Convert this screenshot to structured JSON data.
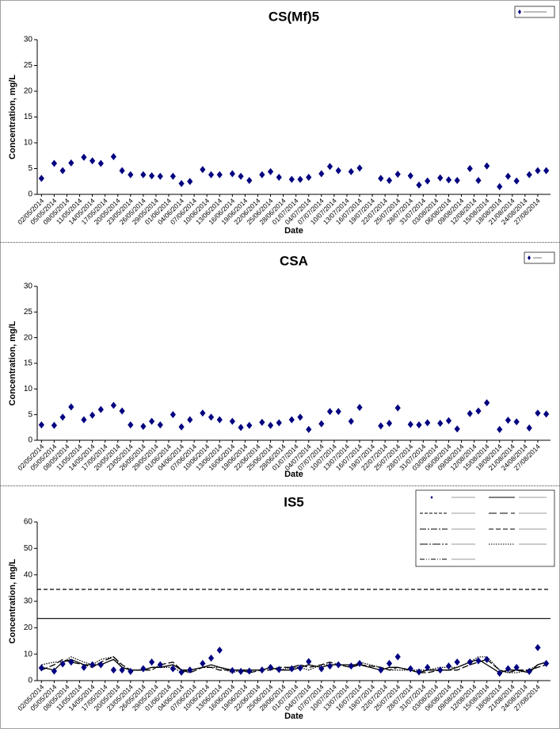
{
  "chart_data": [
    {
      "type": "scatter",
      "title": "CS(Mf)5",
      "x_label": "Date",
      "y_label": "Concentration, mg/L",
      "x": [
        "02/05/2014",
        "05/05/2014",
        "07/05/2014",
        "09/05/2014",
        "12/05/2014",
        "14/05/2014",
        "16/05/2014",
        "19/05/2014",
        "21/05/2014",
        "23/05/2014",
        "26/05/2014",
        "28/05/2014",
        "30/05/2014",
        "02/06/2014",
        "04/06/2014",
        "06/06/2014",
        "09/06/2014",
        "11/06/2014",
        "13/06/2014",
        "16/06/2014",
        "18/06/2014",
        "20/06/2014",
        "23/06/2014",
        "25/06/2014",
        "27/06/2014",
        "30/06/2014",
        "02/07/2014",
        "04/07/2014",
        "07/07/2014",
        "09/07/2014",
        "11/07/2014",
        "14/07/2014",
        "16/07/2014",
        "21/07/2014",
        "23/07/2014",
        "25/07/2014",
        "28/07/2014",
        "30/07/2014",
        "01/08/2014",
        "04/08/2014",
        "06/08/2014",
        "08/08/2014",
        "11/08/2014",
        "13/08/2014",
        "15/08/2014",
        "18/08/2014",
        "20/08/2014",
        "22/08/2014",
        "25/08/2014",
        "27/08/2014",
        "29/08/2014"
      ],
      "series": [
        {
          "color": "#000080",
          "marker": "diamond",
          "values": [
            3.1,
            6,
            4.6,
            6.1,
            7.2,
            6.5,
            6,
            7.3,
            4.6,
            3.8,
            3.8,
            3.6,
            3.5,
            3.5,
            2.1,
            2.5,
            4.8,
            3.8,
            3.8,
            4,
            3.5,
            2.7,
            3.8,
            4.4,
            3.3,
            2.9,
            2.9,
            3.3,
            4,
            5.4,
            4.6,
            4.4,
            5.1,
            3.1,
            2.7,
            3.9,
            3.6,
            1.8,
            2.6,
            3.2,
            2.8,
            2.7,
            5,
            2.7,
            5.5,
            1.5,
            3.5,
            2.6,
            3.8,
            4.6,
            4.6
          ]
        }
      ],
      "xlim": [
        "01/05/2014",
        "30/08/2014"
      ],
      "xticks": [
        "02/05/2014",
        "05/05/2014",
        "08/05/2014",
        "11/05/2014",
        "14/05/2014",
        "17/05/2014",
        "20/05/2014",
        "23/05/2014",
        "26/05/2014",
        "29/05/2014",
        "01/06/2014",
        "04/06/2014",
        "07/06/2014",
        "10/06/2014",
        "13/06/2014",
        "16/06/2014",
        "19/06/2014",
        "22/06/2014",
        "25/06/2014",
        "28/06/2014",
        "01/07/2014",
        "04/07/2014",
        "07/07/2014",
        "10/07/2014",
        "13/07/2014",
        "16/07/2014",
        "19/07/2014",
        "22/07/2014",
        "25/07/2014",
        "28/07/2014",
        "31/07/2014",
        "03/08/2014",
        "06/08/2014",
        "09/08/2014",
        "12/08/2014",
        "15/08/2014",
        "18/08/2014",
        "21/08/2014",
        "24/08/2014",
        "27/08/2014"
      ],
      "ylim": [
        0,
        30
      ],
      "yticks": [
        0,
        5,
        10,
        15,
        20,
        25,
        30
      ],
      "grid": false,
      "legend": "upper right"
    },
    {
      "type": "scatter",
      "title": "CSA",
      "x_label": "Date",
      "y_label": "Concentration, mg/L",
      "x": [
        "02/05/2014",
        "05/05/2014",
        "07/05/2014",
        "09/05/2014",
        "12/05/2014",
        "14/05/2014",
        "16/05/2014",
        "19/05/2014",
        "21/05/2014",
        "23/05/2014",
        "26/05/2014",
        "28/05/2014",
        "30/05/2014",
        "02/06/2014",
        "04/06/2014",
        "06/06/2014",
        "09/06/2014",
        "11/06/2014",
        "13/06/2014",
        "16/06/2014",
        "18/06/2014",
        "20/06/2014",
        "23/06/2014",
        "25/06/2014",
        "27/06/2014",
        "30/06/2014",
        "02/07/2014",
        "04/07/2014",
        "07/07/2014",
        "09/07/2014",
        "11/07/2014",
        "14/07/2014",
        "16/07/2014",
        "21/07/2014",
        "23/07/2014",
        "25/07/2014",
        "28/07/2014",
        "30/07/2014",
        "01/08/2014",
        "04/08/2014",
        "06/08/2014",
        "08/08/2014",
        "11/08/2014",
        "13/08/2014",
        "15/08/2014",
        "18/08/2014",
        "20/08/2014",
        "22/08/2014",
        "25/08/2014",
        "27/08/2014",
        "29/08/2014"
      ],
      "series": [
        {
          "color": "#000080",
          "marker": "diamond",
          "values": [
            3,
            2.9,
            4.5,
            6.5,
            4,
            4.9,
            6,
            6.8,
            5.7,
            3,
            2.7,
            3.7,
            3,
            5,
            2.6,
            4,
            5.3,
            4.5,
            4,
            3.7,
            2.5,
            2.9,
            3.5,
            2.9,
            3.4,
            4,
            4.5,
            2.1,
            3.2,
            5.6,
            5.6,
            3.7,
            6.4,
            2.8,
            3.3,
            6.3,
            3.1,
            3,
            3.4,
            3.3,
            3.8,
            2.2,
            5.2,
            5.7,
            7.3,
            2.1,
            3.9,
            3.6,
            2.4,
            5.3,
            5.1
          ]
        }
      ],
      "xlim": [
        "01/05/2014",
        "30/08/2014"
      ],
      "xticks": [
        "02/05/2014",
        "05/05/2014",
        "08/05/2014",
        "11/05/2014",
        "14/05/2014",
        "17/05/2014",
        "20/05/2014",
        "23/05/2014",
        "26/05/2014",
        "29/05/2014",
        "01/06/2014",
        "04/06/2014",
        "07/06/2014",
        "10/06/2014",
        "13/06/2014",
        "16/06/2014",
        "19/06/2014",
        "22/06/2014",
        "25/06/2014",
        "28/06/2014",
        "01/07/2014",
        "04/07/2014",
        "07/07/2014",
        "10/07/2014",
        "13/07/2014",
        "16/07/2014",
        "19/07/2014",
        "22/07/2014",
        "25/07/2014",
        "28/07/2014",
        "31/07/2014",
        "03/08/2014",
        "06/08/2014",
        "09/08/2014",
        "12/08/2014",
        "15/08/2014",
        "18/08/2014",
        "21/08/2014",
        "24/08/2014",
        "27/08/2014"
      ],
      "ylim": [
        0,
        30
      ],
      "yticks": [
        0,
        5,
        10,
        15,
        20,
        25,
        30
      ],
      "grid": false,
      "legend": "upper right"
    },
    {
      "type": "line",
      "title": "IS5",
      "x_label": "Date",
      "y_label": "Concentration, mg/L",
      "x": [
        "02/05/2014",
        "05/05/2014",
        "07/05/2014",
        "09/05/2014",
        "12/05/2014",
        "14/05/2014",
        "16/05/2014",
        "19/05/2014",
        "21/05/2014",
        "23/05/2014",
        "26/05/2014",
        "28/05/2014",
        "30/05/2014",
        "02/06/2014",
        "04/06/2014",
        "06/06/2014",
        "09/06/2014",
        "11/06/2014",
        "13/06/2014",
        "16/06/2014",
        "18/06/2014",
        "20/06/2014",
        "23/06/2014",
        "25/06/2014",
        "27/06/2014",
        "30/06/2014",
        "02/07/2014",
        "04/07/2014",
        "07/07/2014",
        "09/07/2014",
        "11/07/2014",
        "14/07/2014",
        "16/07/2014",
        "21/07/2014",
        "23/07/2014",
        "25/07/2014",
        "28/07/2014",
        "30/07/2014",
        "01/08/2014",
        "04/08/2014",
        "06/08/2014",
        "08/08/2014",
        "11/08/2014",
        "13/08/2014",
        "15/08/2014",
        "18/08/2014",
        "20/08/2014",
        "22/08/2014",
        "25/08/2014",
        "27/08/2014",
        "29/08/2014"
      ],
      "series": [
        {
          "color": "#000000",
          "dash": "",
          "values": [
            5,
            4,
            7,
            8,
            6,
            6,
            6,
            8,
            5,
            4,
            4,
            5,
            5,
            6,
            4,
            4,
            5,
            6,
            5,
            4,
            4,
            4,
            4,
            5,
            4,
            4,
            5,
            6,
            5,
            6,
            6,
            6,
            6,
            4,
            5,
            5,
            4,
            3,
            4,
            4,
            4,
            5,
            7,
            8,
            6,
            3,
            4,
            4,
            3,
            6,
            7
          ]
        },
        {
          "color": "#000000",
          "dash": "8,3",
          "values": [
            4,
            6,
            8,
            7,
            6,
            5,
            7,
            9,
            6,
            4,
            4,
            4,
            6,
            7,
            4,
            3,
            5,
            5,
            4,
            4,
            4,
            3,
            4,
            4,
            5,
            5,
            6,
            5,
            6,
            7,
            6,
            5,
            6,
            5,
            4,
            5,
            4,
            3,
            3,
            4,
            4,
            4,
            6,
            7,
            8,
            4,
            3,
            4,
            4,
            5,
            6
          ]
        },
        {
          "color": "#000000",
          "dash": "1.5,1.5",
          "values": [
            6,
            7,
            7,
            9,
            7,
            6,
            8,
            9,
            5,
            4,
            4,
            5,
            5,
            5,
            3,
            4,
            5,
            5,
            5,
            3,
            4,
            4,
            4,
            5,
            4,
            5,
            5,
            4,
            6,
            6,
            6,
            5,
            7,
            5,
            4,
            4,
            4,
            4,
            4,
            5,
            5,
            5,
            7,
            9,
            9,
            4,
            3,
            3,
            4,
            6,
            7
          ]
        },
        {
          "color": "#000080",
          "marker": "diamond",
          "values": [
            4.8,
            3.6,
            6.3,
            7,
            5,
            6,
            6,
            4,
            4,
            3.5,
            4.5,
            7,
            6,
            4.5,
            3.2,
            4,
            6.5,
            8.5,
            11.5,
            3.8,
            3.5,
            3.6,
            4,
            5,
            4.2,
            4.5,
            4.8,
            7.2,
            4.5,
            5.5,
            6,
            5.5,
            6.5,
            4,
            6.5,
            9,
            4.5,
            3.3,
            5,
            4,
            5.5,
            7,
            7,
            7.5,
            8,
            2.8,
            4.5,
            5,
            3.5,
            12.5,
            6.5
          ]
        }
      ],
      "reference_lines": [
        {
          "value": 34.5,
          "dash": "5,3",
          "color": "#000000"
        },
        {
          "value": 23.5,
          "dash": "",
          "color": "#000000"
        }
      ],
      "xlim": [
        "01/05/2014",
        "30/08/2014"
      ],
      "xticks": [
        "02/05/2014",
        "05/05/2014",
        "08/05/2014",
        "11/05/2014",
        "14/05/2014",
        "17/05/2014",
        "20/05/2014",
        "23/05/2014",
        "26/05/2014",
        "29/05/2014",
        "01/06/2014",
        "04/06/2014",
        "07/06/2014",
        "10/06/2014",
        "13/06/2014",
        "16/06/2014",
        "19/06/2014",
        "22/06/2014",
        "25/06/2014",
        "28/06/2014",
        "01/07/2014",
        "04/07/2014",
        "07/07/2014",
        "10/07/2014",
        "13/07/2014",
        "16/07/2014",
        "19/07/2014",
        "22/07/2014",
        "25/07/2014",
        "28/07/2014",
        "31/07/2014",
        "03/08/2014",
        "06/08/2014",
        "09/08/2014",
        "12/08/2014",
        "15/08/2014",
        "18/08/2014",
        "21/08/2014",
        "24/08/2014",
        "27/08/2014"
      ],
      "ylim": [
        0,
        60
      ],
      "yticks": [
        0,
        10,
        20,
        30,
        40,
        50,
        60
      ],
      "grid": false,
      "legend": "upper right"
    }
  ]
}
